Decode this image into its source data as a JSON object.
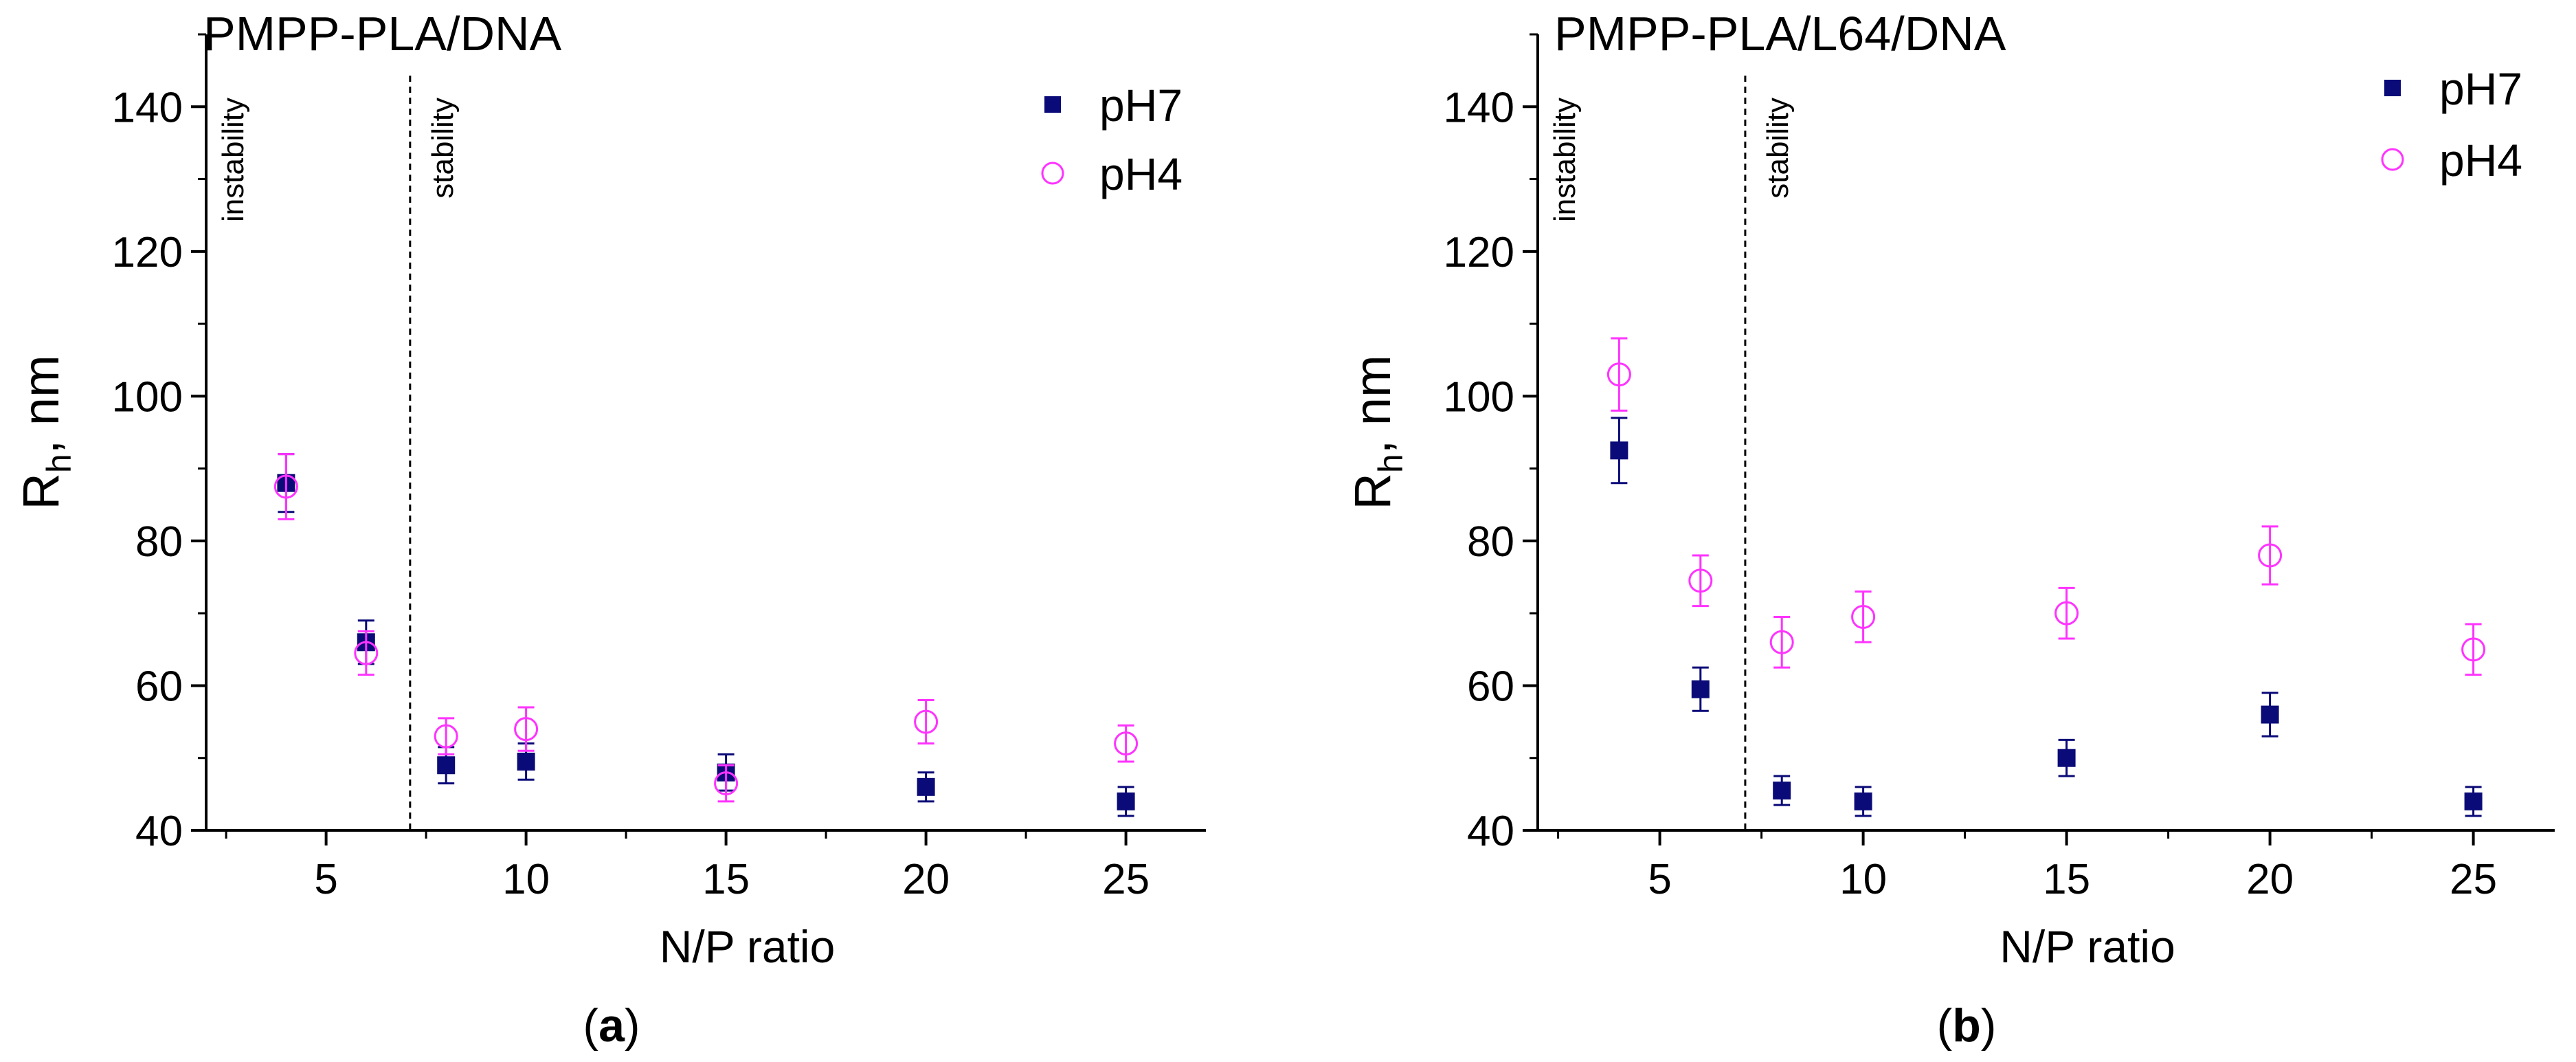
{
  "colors": {
    "ph7": "#0a0a78",
    "ph4": "#ff33ff",
    "axis": "#000000"
  },
  "chart_data": [
    {
      "type": "scatter",
      "panel": "a",
      "caption": "a",
      "title": "PMPP-PLA/DNA",
      "xlabel": "N/P ratio",
      "ylabel_main": "R",
      "ylabel_sub": "h",
      "ylabel_rest": ", nm",
      "xlim": [
        2,
        27
      ],
      "ylim": [
        40,
        150
      ],
      "xticks": [
        5,
        10,
        15,
        20,
        25
      ],
      "xminor": [
        2.5,
        7.5,
        12.5,
        17.5,
        22.5
      ],
      "yticks": [
        40,
        60,
        80,
        100,
        120,
        140
      ],
      "yminor": [
        50,
        70,
        90,
        110,
        130,
        150
      ],
      "xtick_labels": [
        "5",
        "10",
        "15",
        "20",
        "25"
      ],
      "ytick_labels": [
        "40",
        "60",
        "80",
        "100",
        "120",
        "140"
      ],
      "divider_x": 7.1,
      "region_labels": [
        "instability",
        "stability"
      ],
      "legend_position": "top-right",
      "series": [
        {
          "name": "pH7",
          "marker": "filled-square",
          "x": [
            4,
            6,
            8,
            10,
            15,
            20,
            25
          ],
          "y": [
            88,
            66,
            49,
            49.5,
            48,
            46,
            44
          ],
          "err": [
            4,
            3,
            2.5,
            2.5,
            2.5,
            2,
            2
          ]
        },
        {
          "name": "pH4",
          "marker": "open-circle",
          "x": [
            4,
            6,
            8,
            10,
            15,
            20,
            25
          ],
          "y": [
            87.5,
            64.5,
            53,
            54,
            46.5,
            55,
            52
          ],
          "err": [
            4.5,
            3,
            2.5,
            3,
            2.5,
            3,
            2.5
          ]
        }
      ]
    },
    {
      "type": "scatter",
      "panel": "b",
      "caption": "b",
      "title": "PMPP-PLA/L64/DNA",
      "xlabel": "N/P ratio",
      "ylabel_main": "R",
      "ylabel_sub": "h",
      "ylabel_rest": ", nm",
      "xlim": [
        2,
        27
      ],
      "ylim": [
        40,
        150
      ],
      "xticks": [
        5,
        10,
        15,
        20,
        25
      ],
      "xminor": [
        2.5,
        7.5,
        12.5,
        17.5,
        22.5
      ],
      "yticks": [
        40,
        60,
        80,
        100,
        120,
        140
      ],
      "yminor": [
        50,
        70,
        90,
        110,
        130,
        150
      ],
      "xtick_labels": [
        "5",
        "10",
        "15",
        "20",
        "25"
      ],
      "ytick_labels": [
        "40",
        "60",
        "80",
        "100",
        "120",
        "140"
      ],
      "divider_x": 7.1,
      "region_labels": [
        "instability",
        "stability"
      ],
      "legend_position": "top-right",
      "series": [
        {
          "name": "pH7",
          "marker": "filled-square",
          "x": [
            4,
            6,
            8,
            10,
            15,
            20,
            25
          ],
          "y": [
            92.5,
            59.5,
            45.5,
            44,
            50,
            56,
            44
          ],
          "err": [
            4.5,
            3,
            2,
            2,
            2.5,
            3,
            2
          ]
        },
        {
          "name": "pH4",
          "marker": "open-circle",
          "x": [
            4,
            6,
            8,
            10,
            15,
            20,
            25
          ],
          "y": [
            103,
            74.5,
            66,
            69.5,
            70,
            78,
            65
          ],
          "err": [
            5,
            3.5,
            3.5,
            3.5,
            3.5,
            4,
            3.5
          ]
        }
      ]
    }
  ]
}
